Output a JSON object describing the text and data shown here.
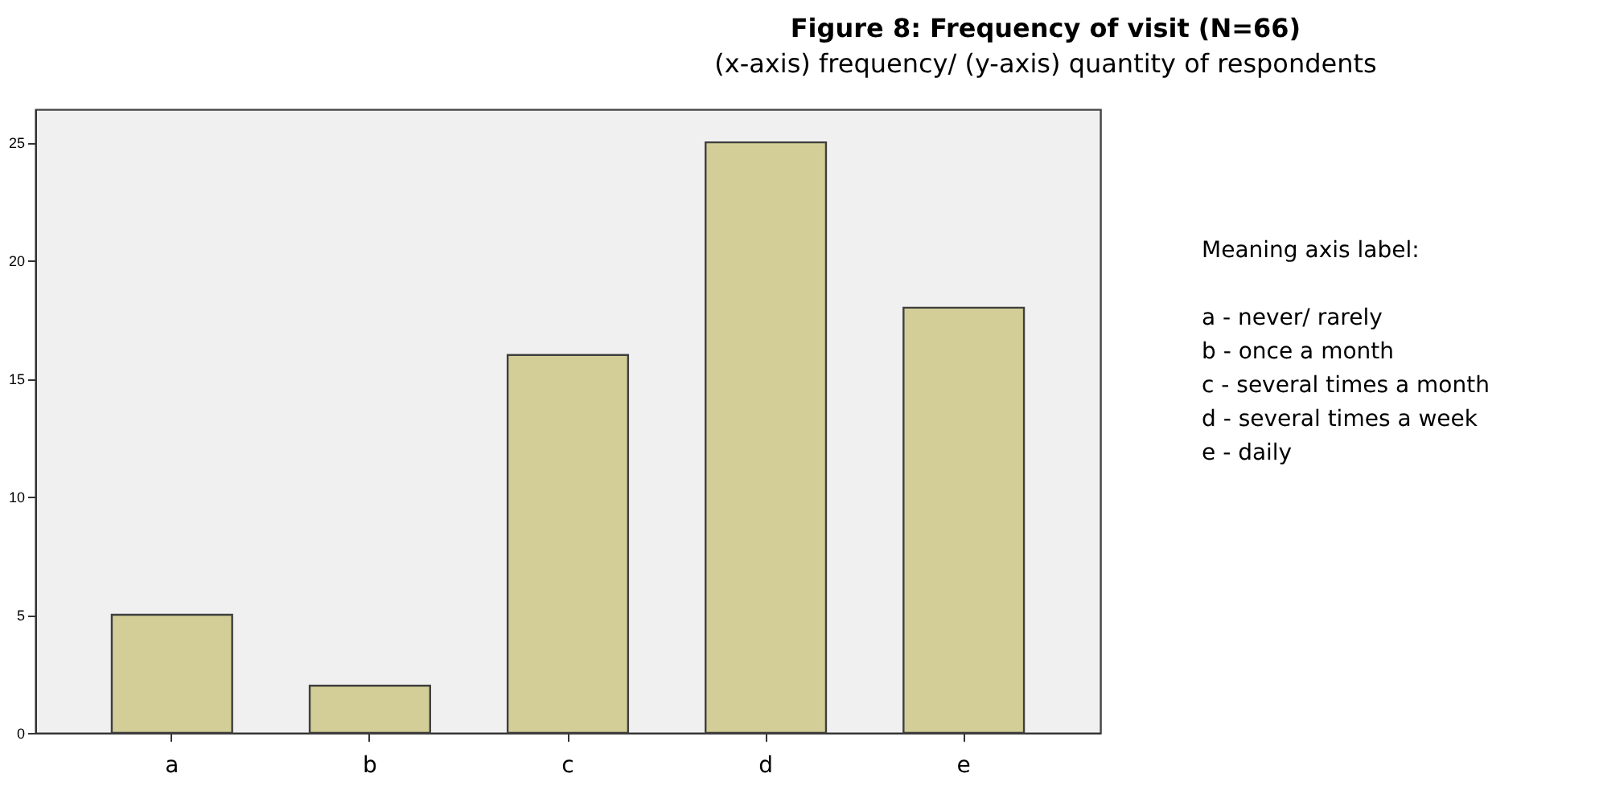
{
  "chart_data": {
    "type": "bar",
    "title": "Figure 8: Frequency of visit (N=66)",
    "subtitle": "(x-axis) frequency/ (y-axis) quantity of respondents",
    "categories": [
      "a",
      "b",
      "c",
      "d",
      "e"
    ],
    "values": [
      5,
      2,
      16,
      25,
      18
    ],
    "color": "#d3ce97",
    "ylim": [
      0,
      26.4
    ],
    "yticks": [
      0,
      5,
      10,
      15,
      20,
      25
    ],
    "grid": false,
    "annotations": [
      "Meaning axis label:",
      "a - never/ rarely",
      "b - once a month",
      "c - several times a month",
      "d - several times a week",
      "e - daily"
    ]
  }
}
